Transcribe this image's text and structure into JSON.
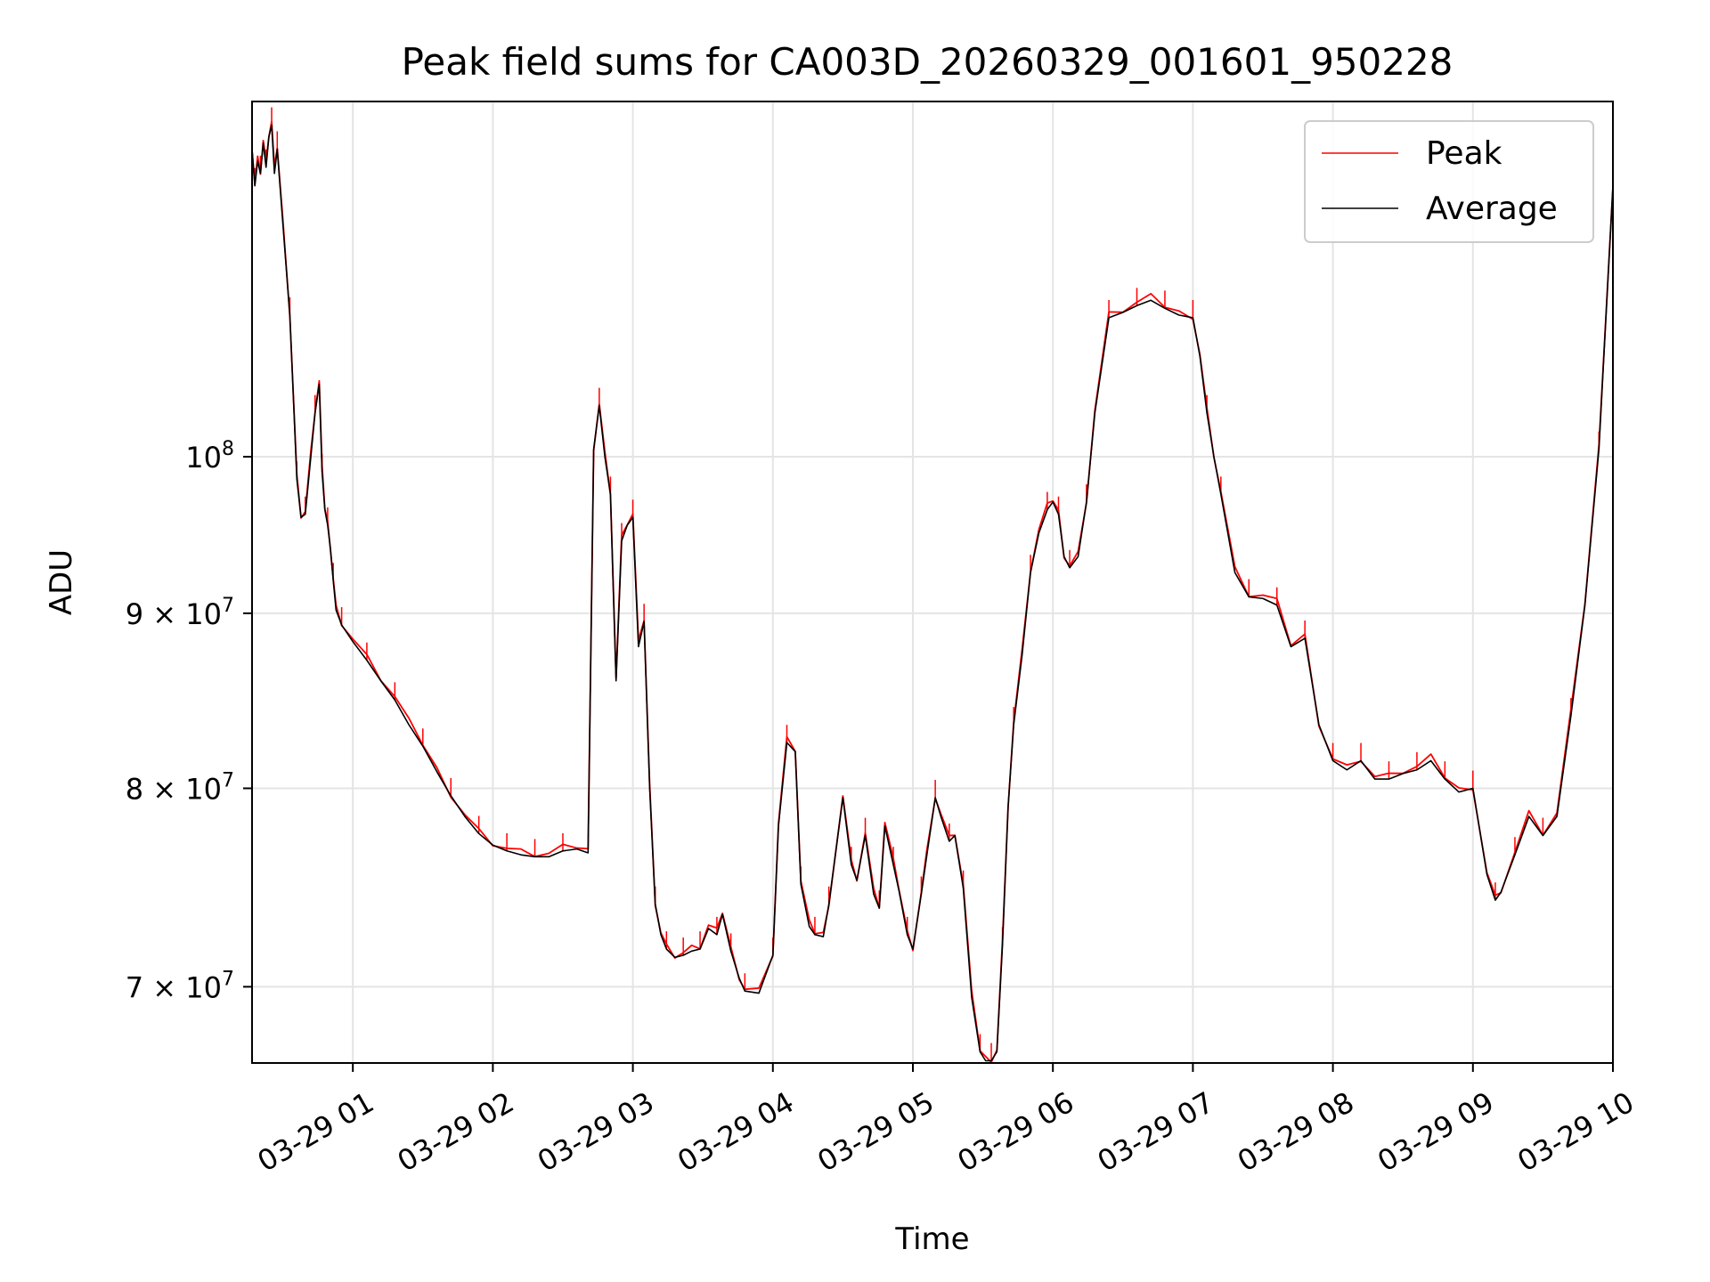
{
  "chart_data": {
    "type": "line",
    "title": "Peak field sums for CA003D_20260329_001601_950228",
    "xlabel": "Time",
    "ylabel": "ADU",
    "yscale": "log",
    "xlim_hours": [
      0.28,
      10.0
    ],
    "ylim": [
      66500000,
      127000000
    ],
    "grid": true,
    "legend_position": "top-right",
    "x_ticks": [
      {
        "value": 1,
        "label": "03-29 01"
      },
      {
        "value": 2,
        "label": "03-29 02"
      },
      {
        "value": 3,
        "label": "03-29 03"
      },
      {
        "value": 4,
        "label": "03-29 04"
      },
      {
        "value": 5,
        "label": "03-29 05"
      },
      {
        "value": 6,
        "label": "03-29 06"
      },
      {
        "value": 7,
        "label": "03-29 07"
      },
      {
        "value": 8,
        "label": "03-29 08"
      },
      {
        "value": 9,
        "label": "03-29 09"
      },
      {
        "value": 10,
        "label": "03-29 10"
      }
    ],
    "y_ticks": [
      {
        "value": 70000000,
        "base": "7 × 10",
        "exp": "7"
      },
      {
        "value": 80000000,
        "base": "8 × 10",
        "exp": "7"
      },
      {
        "value": 90000000,
        "base": "9 × 10",
        "exp": "7"
      },
      {
        "value": 100000000,
        "base": "10",
        "exp": "8"
      }
    ],
    "series": [
      {
        "name": "Peak",
        "color": "#ff0000"
      },
      {
        "name": "Average",
        "color": "#000000"
      }
    ],
    "time_hours": [
      0.28,
      0.3,
      0.32,
      0.34,
      0.36,
      0.38,
      0.4,
      0.42,
      0.44,
      0.46,
      0.5,
      0.55,
      0.58,
      0.6,
      0.63,
      0.66,
      0.7,
      0.73,
      0.76,
      0.78,
      0.8,
      0.82,
      0.84,
      0.86,
      0.88,
      0.92,
      1.0,
      1.1,
      1.2,
      1.3,
      1.4,
      1.5,
      1.6,
      1.7,
      1.8,
      1.9,
      2.0,
      2.1,
      2.2,
      2.3,
      2.4,
      2.5,
      2.6,
      2.68,
      2.72,
      2.76,
      2.8,
      2.84,
      2.88,
      2.92,
      2.96,
      3.0,
      3.04,
      3.08,
      3.12,
      3.16,
      3.2,
      3.24,
      3.3,
      3.36,
      3.42,
      3.48,
      3.54,
      3.6,
      3.64,
      3.7,
      3.76,
      3.8,
      3.9,
      4.0,
      4.04,
      4.1,
      4.16,
      4.2,
      4.26,
      4.3,
      4.36,
      4.4,
      4.5,
      4.56,
      4.6,
      4.66,
      4.72,
      4.76,
      4.8,
      4.86,
      4.9,
      4.96,
      5.0,
      5.06,
      5.1,
      5.16,
      5.2,
      5.26,
      5.3,
      5.36,
      5.42,
      5.48,
      5.52,
      5.56,
      5.6,
      5.64,
      5.68,
      5.72,
      5.78,
      5.84,
      5.9,
      5.96,
      6.0,
      6.04,
      6.08,
      6.12,
      6.18,
      6.24,
      6.3,
      6.4,
      6.5,
      6.6,
      6.7,
      6.8,
      6.9,
      7.0,
      7.05,
      7.1,
      7.15,
      7.2,
      7.3,
      7.4,
      7.5,
      7.6,
      7.7,
      7.8,
      7.9,
      8.0,
      8.1,
      8.2,
      8.3,
      8.4,
      8.5,
      8.6,
      8.7,
      8.8,
      8.9,
      9.0,
      9.1,
      9.16,
      9.2,
      9.3,
      9.4,
      9.5,
      9.6,
      9.7,
      9.8,
      9.9,
      10.0
    ],
    "average_adu": [
      123000000,
      120000000,
      122000000,
      121000000,
      123500000,
      121500000,
      124000000,
      125000000,
      121000000,
      123000000,
      117000000,
      110000000,
      103000000,
      98500000,
      96000000,
      96200000,
      100000000,
      103000000,
      105000000,
      99000000,
      96500000,
      95500000,
      94000000,
      92000000,
      90200000,
      89300000,
      88300000,
      87200000,
      86000000,
      84900000,
      83500000,
      82300000,
      80900000,
      79600000,
      78500000,
      77600000,
      77000000,
      76700000,
      76500000,
      76400000,
      76400000,
      76700000,
      76800000,
      76600000,
      100500000,
      103500000,
      100000000,
      97500000,
      86000000,
      94500000,
      95500000,
      96000000,
      88000000,
      89500000,
      80000000,
      74000000,
      72500000,
      71800000,
      71400000,
      71500000,
      71700000,
      71800000,
      72800000,
      72500000,
      73500000,
      71700000,
      70400000,
      69800000,
      69700000,
      71500000,
      78000000,
      82500000,
      82000000,
      75000000,
      72900000,
      72500000,
      72400000,
      74000000,
      79500000,
      76000000,
      75200000,
      77500000,
      74500000,
      73800000,
      78000000,
      76000000,
      74700000,
      72500000,
      71800000,
      74500000,
      76500000,
      79500000,
      78500000,
      77200000,
      77500000,
      74800000,
      69500000,
      67000000,
      66600000,
      66600000,
      67000000,
      72000000,
      79000000,
      83500000,
      87500000,
      92500000,
      95000000,
      96500000,
      97000000,
      96200000,
      93500000,
      92800000,
      93500000,
      97000000,
      103000000,
      109800000,
      110200000,
      110700000,
      111100000,
      110500000,
      110000000,
      109800000,
      107000000,
      103000000,
      100000000,
      97500000,
      92500000,
      91000000,
      90900000,
      90500000,
      88000000,
      88500000,
      83500000,
      81500000,
      81000000,
      81500000,
      80500000,
      80500000,
      80800000,
      81000000,
      81500000,
      80500000,
      79800000,
      80000000,
      75500000,
      74200000,
      74600000,
      76500000,
      78500000,
      77500000,
      78500000,
      84000000,
      90500000,
      100500000,
      120000000
    ]
  },
  "page": {
    "background": "#ffffff",
    "grid_color": "#e4e4e4"
  }
}
